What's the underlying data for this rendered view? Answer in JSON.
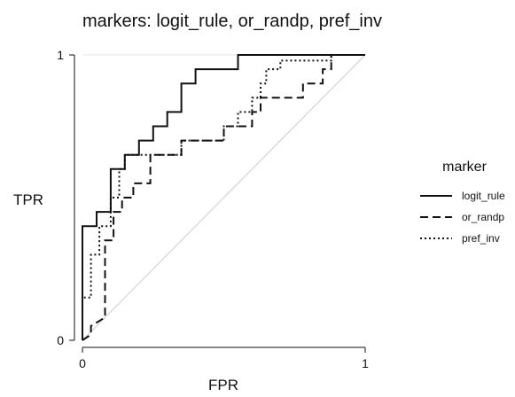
{
  "chart_data": {
    "type": "line",
    "title": "markers: logit_rule, or_randp, pref_inv",
    "xlabel": "FPR",
    "ylabel": "TPR",
    "xlim": [
      0,
      1
    ],
    "ylim": [
      0,
      1
    ],
    "x_ticks": [
      "0",
      "1"
    ],
    "y_ticks": [
      "0",
      "1"
    ],
    "grid": true,
    "legend": {
      "title": "marker",
      "position": "right"
    },
    "reference_line": {
      "x": [
        0,
        1
      ],
      "y": [
        0,
        1
      ],
      "color": "#cccccc"
    },
    "series": [
      {
        "name": "logit_rule",
        "style": "solid",
        "color": "#111111",
        "x": [
          0,
          0,
          0.05,
          0.05,
          0.1,
          0.1,
          0.15,
          0.15,
          0.2,
          0.2,
          0.25,
          0.25,
          0.3,
          0.3,
          0.35,
          0.35,
          0.4,
          0.4,
          0.55,
          0.55,
          1.0
        ],
        "y": [
          0,
          0.4,
          0.4,
          0.45,
          0.45,
          0.6,
          0.6,
          0.65,
          0.65,
          0.7,
          0.7,
          0.75,
          0.75,
          0.8,
          0.8,
          0.9,
          0.9,
          0.95,
          0.95,
          1.0,
          1.0
        ]
      },
      {
        "name": "or_randp",
        "style": "dashed",
        "color": "#111111",
        "x": [
          0,
          0.03,
          0.03,
          0.08,
          0.08,
          0.11,
          0.11,
          0.14,
          0.14,
          0.18,
          0.18,
          0.24,
          0.24,
          0.35,
          0.35,
          0.5,
          0.5,
          0.6,
          0.6,
          0.63,
          0.63,
          0.78,
          0.78,
          0.85,
          0.85,
          0.88,
          0.88,
          1.0
        ],
        "y": [
          0,
          0.02,
          0.05,
          0.08,
          0.35,
          0.35,
          0.45,
          0.45,
          0.5,
          0.5,
          0.55,
          0.55,
          0.65,
          0.65,
          0.7,
          0.7,
          0.75,
          0.75,
          0.8,
          0.8,
          0.85,
          0.85,
          0.9,
          0.9,
          0.95,
          0.95,
          1.0,
          1.0
        ]
      },
      {
        "name": "pref_inv",
        "style": "dotted",
        "color": "#111111",
        "x": [
          0,
          0,
          0.03,
          0.03,
          0.06,
          0.06,
          0.1,
          0.1,
          0.13,
          0.13,
          0.15,
          0.15,
          0.35,
          0.35,
          0.5,
          0.5,
          0.55,
          0.55,
          0.6,
          0.6,
          0.63,
          0.63,
          0.65,
          0.65,
          0.7,
          0.7,
          0.88,
          0.88,
          1.0
        ],
        "y": [
          0,
          0.15,
          0.15,
          0.3,
          0.3,
          0.4,
          0.4,
          0.5,
          0.5,
          0.6,
          0.6,
          0.65,
          0.65,
          0.7,
          0.7,
          0.75,
          0.75,
          0.8,
          0.8,
          0.85,
          0.85,
          0.9,
          0.9,
          0.95,
          0.95,
          0.98,
          0.98,
          1.0,
          1.0
        ]
      }
    ]
  }
}
